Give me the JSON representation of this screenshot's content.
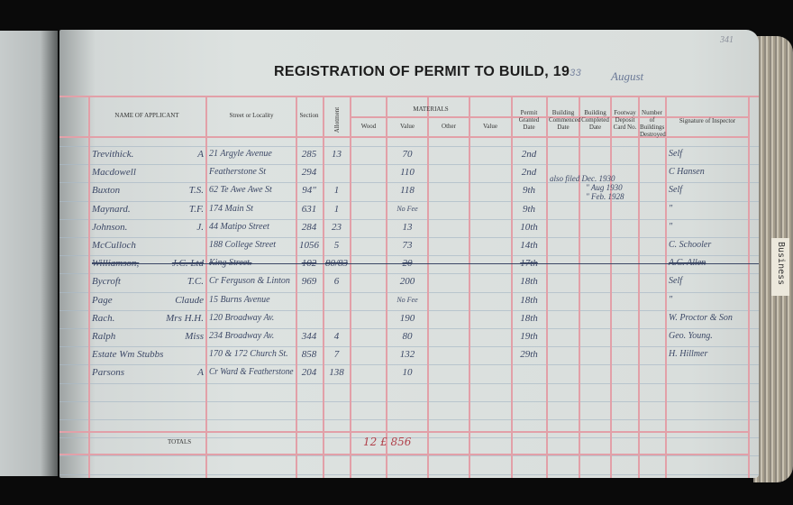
{
  "ledger": {
    "page_number": "341",
    "title": "REGISTRATION OF PERMIT TO BUILD, 19",
    "year_suffix": "33",
    "month": "August",
    "tab_label": "Business",
    "headers": {
      "name": "NAME OF APPLICANT",
      "street": "Street or Locality",
      "section": "Section",
      "allotment": "Allotment",
      "materials": "MATERIALS",
      "wood": "Wood",
      "value1": "Value",
      "other": "Other",
      "value2": "Value",
      "permit_date": "Permit Granted Date",
      "commenced": "Building Commenced Date",
      "completed": "Building Completed Date",
      "footway": "Footway Deposit Card No.",
      "destroyed": "Number of Buildings Destroyed",
      "signature": "Signature of Inspector"
    },
    "rows": [
      {
        "name": "Trevithick.",
        "initials": "A",
        "street": "21 Argyle Avenue",
        "section": "285",
        "allotment": "13",
        "value": "70",
        "permit_date": "2nd",
        "signature": "Self"
      },
      {
        "name": "Macdowell",
        "initials": "",
        "street": "Featherstone St",
        "section": "294",
        "allotment": "",
        "value": "110",
        "permit_date": "2nd",
        "signature": "C Hansen"
      },
      {
        "name": "Buxton",
        "initials": "T.S.",
        "street": "62 Te Awe Awe St",
        "section": "94\"",
        "allotment": "1",
        "value": "118",
        "permit_date": "9th",
        "signature": "Self"
      },
      {
        "name": "Maynard.",
        "initials": "T.F.",
        "street": "174 Main St",
        "section": "631",
        "allotment": "1",
        "value": "No Fee",
        "permit_date": "9th",
        "signature": "\""
      },
      {
        "name": "Johnson.",
        "initials": "J.",
        "street": "44 Matipo Street",
        "section": "284",
        "allotment": "23",
        "value": "13",
        "permit_date": "10th",
        "signature": "\""
      },
      {
        "name": "McCulloch",
        "initials": "",
        "street": "188 College Street",
        "section": "1056",
        "allotment": "5",
        "value": "73",
        "permit_date": "14th",
        "signature": "C. Schooler"
      },
      {
        "name": "Williamson,",
        "initials": "J.C. Ltd",
        "street": "King Street.",
        "section": "102",
        "allotment": "80/83",
        "value": "20",
        "permit_date": "17th",
        "signature": "A.C. Allen",
        "struck": true
      },
      {
        "name": "Bycroft",
        "initials": "T.C.",
        "street": "Cr Ferguson & Linton",
        "section": "969",
        "allotment": "6",
        "value": "200",
        "permit_date": "18th",
        "signature": "Self"
      },
      {
        "name": "Page",
        "initials": "Claude",
        "street": "15 Burns Avenue",
        "section": "",
        "allotment": "",
        "value": "No Fee",
        "permit_date": "18th",
        "signature": "\""
      },
      {
        "name": "Rach.",
        "initials": "Mrs H.H.",
        "street": "120 Broadway Av.",
        "section": "",
        "allotment": "",
        "value": "190",
        "permit_date": "18th",
        "signature": "W. Proctor & Son"
      },
      {
        "name": "Ralph",
        "initials": "Miss",
        "street": "234 Broadway Av.",
        "section": "344",
        "allotment": "4",
        "value": "80",
        "permit_date": "19th",
        "signature": "Geo. Young."
      },
      {
        "name": "Estate Wm Stubbs",
        "initials": "",
        "street": "170 & 172 Church St.",
        "section": "858",
        "allotment": "7",
        "value": "132",
        "permit_date": "29th",
        "signature": "H. Hillmer"
      },
      {
        "name": "Parsons",
        "initials": "A",
        "street": "Cr Ward & Featherstone",
        "section": "204",
        "allotment": "138",
        "value": "10",
        "permit_date": "",
        "signature": ""
      }
    ],
    "note": [
      "also filed Dec. 1930",
      "\" Aug 1930",
      "\" Feb. 1928"
    ],
    "totals_label": "TOTALS",
    "totals_value": "12 £ 856"
  }
}
